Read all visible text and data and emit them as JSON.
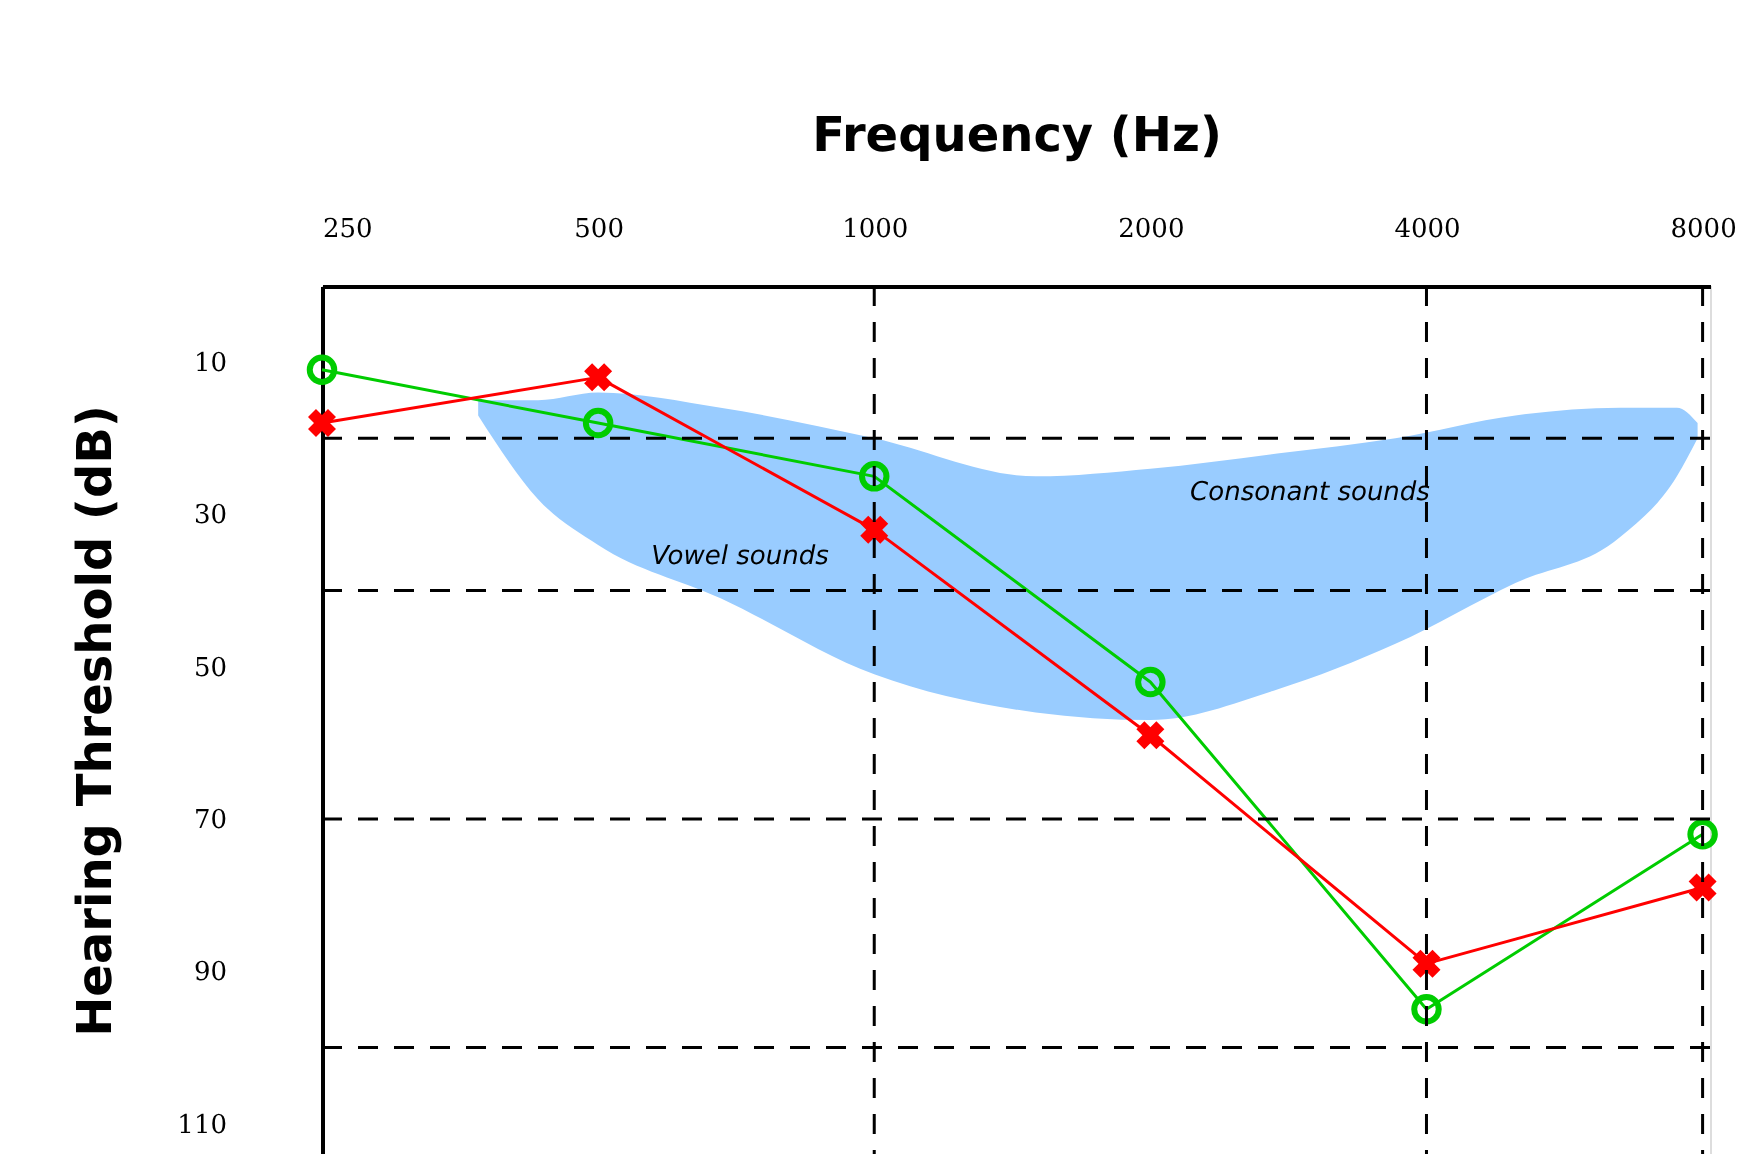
{
  "chart_data": {
    "type": "line",
    "xlabel": "Frequency (Hz)",
    "ylabel": "Hearing Threshold (dB)",
    "x": [
      250,
      500,
      1000,
      2000,
      4000,
      8000
    ],
    "log": "x",
    "xlim": [
      250,
      8150
    ],
    "xticks": [
      250,
      500,
      1000,
      2000,
      4000,
      8000
    ],
    "ylim": [
      114,
      0
    ],
    "yticks": [
      10,
      30,
      50,
      70,
      90,
      110
    ],
    "series": [
      {
        "type": "area",
        "color": "#99ccff",
        "x": [
          370,
          430,
          500,
          680,
          1000,
          1500,
          2000,
          2750,
          3700,
          5000,
          6500,
          7500,
          7900
        ],
        "values": [
          null,
          null,
          null,
          null,
          null,
          null,
          null,
          null,
          null,
          null,
          null,
          null,
          null
        ],
        "lower": [
          15,
          15,
          14,
          16,
          20,
          25,
          24,
          22,
          20,
          17,
          16,
          16,
          18
        ],
        "upper": [
          17,
          28,
          34,
          41,
          51,
          56,
          57,
          53,
          47,
          39,
          33,
          25,
          20
        ]
      },
      {
        "color": "#00cc00",
        "marker": "circle",
        "values": [
          11,
          18,
          25,
          52,
          95,
          72
        ]
      },
      {
        "color": "#ff0000",
        "marker": "cross",
        "values": [
          18,
          12,
          32,
          59,
          89,
          79
        ]
      }
    ],
    "ref_lines": [
      {
        "axis": "x",
        "value": 1000,
        "line_style": "dashed",
        "color": "#000000"
      },
      {
        "axis": "x",
        "value": 4000,
        "line_style": "dashed",
        "color": "#000000"
      },
      {
        "axis": "x",
        "value": 8000,
        "line_style": "dashed",
        "color": "#000000"
      },
      {
        "axis": "y",
        "value": 20,
        "line_style": "dashed",
        "color": "#000000"
      },
      {
        "axis": "y",
        "value": 40,
        "line_style": "dashed",
        "color": "#000000"
      },
      {
        "axis": "y",
        "value": 70,
        "line_style": "dashed",
        "color": "#000000"
      },
      {
        "axis": "y",
        "value": 100,
        "line_style": "dashed",
        "color": "#000000"
      }
    ],
    "annotations": [
      "Vowel sounds",
      "Consonant sounds"
    ],
    "grid": false,
    "line_style": "solid"
  }
}
